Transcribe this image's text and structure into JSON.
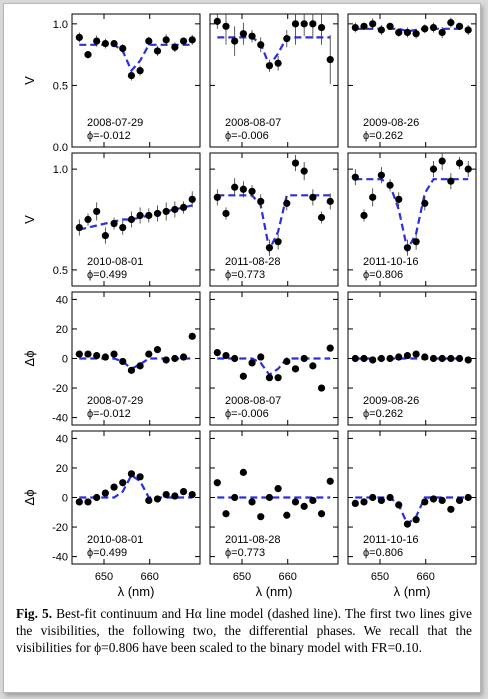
{
  "figure": {
    "rows": [
      {
        "ylabel": "V",
        "yticks": [
          "0.0",
          "0.5",
          "1.0"
        ],
        "yrange": [
          0,
          1.08
        ],
        "panels": [
          {
            "date": "2008-07-29",
            "phase": "ϕ=-0.012"
          },
          {
            "date": "2008-08-07",
            "phase": "ϕ=-0.006"
          },
          {
            "date": "2009-08-26",
            "phase": "ϕ=0.262"
          }
        ]
      },
      {
        "ylabel": "V",
        "yticks": [
          "0.5",
          "1.0"
        ],
        "yrange": [
          0.42,
          1.08
        ],
        "panels": [
          {
            "date": "2010-08-01",
            "phase": "ϕ=0.499"
          },
          {
            "date": "2011-08-28",
            "phase": "ϕ=0.773"
          },
          {
            "date": "2011-10-16",
            "phase": "ϕ=0.806"
          }
        ]
      },
      {
        "ylabel": "Δϕ",
        "yticks": [
          "-40",
          "-20",
          "0",
          "20",
          "40"
        ],
        "yrange": [
          -45,
          45
        ],
        "panels": [
          {
            "date": "2008-07-29",
            "phase": "ϕ=-0.012"
          },
          {
            "date": "2008-08-07",
            "phase": "ϕ=-0.006"
          },
          {
            "date": "2009-08-26",
            "phase": "ϕ=0.262"
          }
        ]
      },
      {
        "ylabel": "Δϕ",
        "yticks": [
          "-40",
          "-20",
          "0",
          "20",
          "40"
        ],
        "yrange": [
          -45,
          45
        ],
        "panels": [
          {
            "date": "2010-08-01",
            "phase": "ϕ=0.499"
          },
          {
            "date": "2011-08-28",
            "phase": "ϕ=0.773"
          },
          {
            "date": "2011-10-16",
            "phase": "ϕ=0.806"
          }
        ]
      }
    ],
    "xticks": [
      "650",
      "660"
    ],
    "xlabel": "λ (nm)"
  },
  "caption": {
    "label": "Fig. 5.",
    "text": "Best-fit continuum and Hα line model (dashed line). The first two lines give the visibilities, the following two, the differential phases. We recall that the visibilities for ϕ=0.806 have been scaled to the binary model with FR=0.10."
  },
  "colors": {
    "points": "#000000",
    "model": "#2a2fe0"
  },
  "chart_data": {
    "type": "scatter",
    "x_label": "λ (nm)",
    "xlim": [
      643,
      671
    ],
    "x": [
      644.6,
      646.5,
      648.4,
      650.3,
      652.2,
      654.1,
      656.0,
      657.9,
      659.8,
      661.7,
      663.6,
      665.5,
      667.4,
      669.3
    ],
    "panels": [
      {
        "quantity": "V",
        "date": "2008-07-29",
        "phase": "ϕ=-0.012",
        "y": [
          0.89,
          0.75,
          0.86,
          0.84,
          0.84,
          0.8,
          0.58,
          0.62,
          0.86,
          0.78,
          0.87,
          0.81,
          0.86,
          0.87
        ],
        "model": [
          0.83,
          0.83,
          0.83,
          0.83,
          0.83,
          0.78,
          0.62,
          0.7,
          0.83,
          0.83,
          0.83,
          0.83,
          0.83,
          0.83
        ]
      },
      {
        "quantity": "V",
        "date": "2008-08-07",
        "phase": "ϕ=-0.006",
        "y": [
          1.02,
          0.98,
          0.86,
          0.92,
          0.9,
          0.83,
          0.66,
          0.68,
          0.88,
          1.0,
          1.0,
          1.0,
          0.97,
          0.71
        ],
        "model": [
          0.89,
          0.89,
          0.89,
          0.89,
          0.89,
          0.84,
          0.66,
          0.76,
          0.89,
          0.89,
          0.89,
          0.89,
          0.89,
          0.89
        ]
      },
      {
        "quantity": "V",
        "date": "2009-08-26",
        "phase": "ϕ=0.262",
        "y": [
          0.97,
          0.98,
          1.0,
          0.95,
          0.98,
          0.93,
          0.93,
          0.92,
          0.96,
          0.97,
          0.93,
          1.01,
          0.98,
          0.95
        ],
        "model": [
          0.96,
          0.96,
          0.96,
          0.96,
          0.96,
          0.96,
          0.94,
          0.95,
          0.96,
          0.96,
          0.96,
          0.96,
          0.96,
          0.96
        ]
      },
      {
        "quantity": "V",
        "date": "2010-08-01",
        "phase": "ϕ=0.499",
        "y": [
          0.71,
          0.75,
          0.79,
          0.67,
          0.73,
          0.71,
          0.75,
          0.77,
          0.77,
          0.78,
          0.79,
          0.8,
          0.81,
          0.85
        ],
        "model": [
          0.7,
          0.71,
          0.72,
          0.73,
          0.74,
          0.75,
          0.75,
          0.76,
          0.77,
          0.78,
          0.79,
          0.8,
          0.81,
          0.82
        ]
      },
      {
        "quantity": "V",
        "date": "2011-08-28",
        "phase": "ϕ=0.773",
        "y": [
          0.86,
          0.78,
          0.91,
          0.9,
          0.89,
          0.84,
          0.61,
          0.64,
          0.83,
          1.03,
          0.99,
          0.86,
          0.76,
          0.84
        ],
        "model": [
          0.87,
          0.87,
          0.87,
          0.87,
          0.87,
          0.82,
          0.6,
          0.69,
          0.87,
          0.87,
          0.87,
          0.87,
          0.87,
          0.87
        ]
      },
      {
        "quantity": "V",
        "date": "2011-10-16",
        "phase": "ϕ=0.806",
        "y": [
          0.96,
          0.77,
          0.86,
          0.97,
          0.92,
          0.85,
          0.61,
          0.64,
          0.83,
          1.0,
          1.04,
          0.94,
          1.03,
          1.0
        ],
        "model": [
          0.95,
          0.95,
          0.95,
          0.95,
          0.92,
          0.8,
          0.6,
          0.68,
          0.88,
          0.95,
          0.95,
          0.95,
          0.95,
          0.95
        ]
      },
      {
        "quantity": "Δϕ",
        "date": "2008-07-29",
        "phase": "ϕ=-0.012",
        "y": [
          3,
          3,
          2,
          1,
          3,
          -2,
          -8,
          -5,
          3,
          6,
          -1,
          0,
          1,
          15
        ],
        "model": [
          0,
          0,
          0,
          0,
          0,
          -2,
          -7,
          -4,
          0,
          0,
          0,
          0,
          0,
          0
        ]
      },
      {
        "quantity": "Δϕ",
        "date": "2008-08-07",
        "phase": "ϕ=-0.006",
        "y": [
          4,
          2,
          0,
          -12,
          -3,
          1,
          -13,
          -13,
          -2,
          -7,
          0,
          -5,
          -20,
          7
        ],
        "model": [
          0,
          0,
          0,
          0,
          0,
          -3,
          -11,
          -7,
          0,
          0,
          0,
          0,
          0,
          0
        ]
      },
      {
        "quantity": "Δϕ",
        "date": "2009-08-26",
        "phase": "ϕ=0.262",
        "y": [
          0,
          0,
          -1,
          0,
          0,
          1,
          2,
          3,
          1,
          0,
          0,
          0,
          0,
          -1
        ],
        "model": [
          0,
          0,
          0,
          0,
          0,
          0,
          0,
          0,
          0,
          0,
          0,
          0,
          0,
          0
        ]
      },
      {
        "quantity": "Δϕ",
        "date": "2010-08-01",
        "phase": "ϕ=0.499",
        "y": [
          -3,
          -3,
          0,
          3,
          7,
          10,
          16,
          14,
          -2,
          -1,
          2,
          1,
          4,
          2
        ],
        "model": [
          0,
          0,
          0,
          0,
          0,
          4,
          15,
          11,
          0,
          0,
          0,
          0,
          0,
          0
        ]
      },
      {
        "quantity": "Δϕ",
        "date": "2011-08-28",
        "phase": "ϕ=0.773",
        "y": [
          10,
          -11,
          0,
          17,
          -3,
          -13,
          0,
          6,
          -12,
          -3,
          -6,
          -2,
          -11,
          11
        ],
        "model": [
          0,
          0,
          0,
          0,
          0,
          0,
          0,
          0,
          0,
          0,
          0,
          0,
          0,
          0
        ]
      },
      {
        "quantity": "Δϕ",
        "date": "2011-10-16",
        "phase": "ϕ=0.806",
        "y": [
          -4,
          -3,
          0,
          -2,
          0,
          -5,
          -18,
          -15,
          -3,
          -1,
          -2,
          -8,
          -2,
          0
        ],
        "model": [
          0,
          0,
          0,
          0,
          0,
          -5,
          -18,
          -13,
          0,
          0,
          0,
          0,
          0,
          0
        ]
      }
    ]
  }
}
